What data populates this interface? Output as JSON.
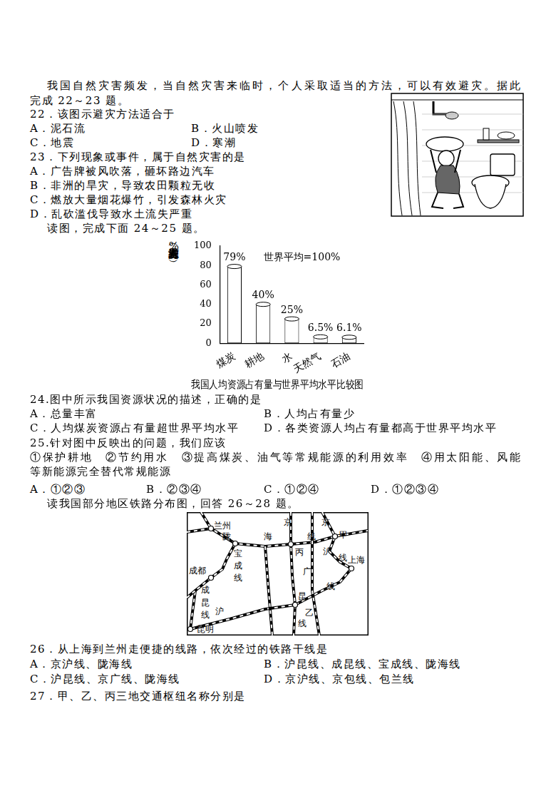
{
  "text_top": [
    [
      "我国自然灾害频发，当自然灾害来临时，个人采取适当的方法，可以有效避灾。据此"
    ],
    [
      "完成 22～23 题。"
    ],
    [
      "22．该图示避灾方法适合于"
    ],
    [
      "A．泥石流",
      "B．火山喷发"
    ],
    [
      "C．地震",
      "D．寒潮"
    ],
    [
      "23．下列现象或事件，属于自然灾害的是"
    ],
    [
      "A．广告牌被风吹落，砸坏路边汽车"
    ],
    [
      "B．非洲的旱灾，导致农田颗粒无收"
    ],
    [
      "C．燃放大量烟花爆竹，引发森林火灾"
    ],
    [
      "D．乱砍滥伐导致水土流失严重"
    ],
    [
      "读图，完成下面 24～25 题。"
    ]
  ],
  "chart_data": {
    "type": "bar",
    "title": "我国人均资源占有量与世界平均水平比较图",
    "y_label": "人均资源占有量（%）",
    "categories": [
      "煤炭",
      "耕地",
      "水",
      "天然气",
      "石油"
    ],
    "values": [
      79,
      40,
      25,
      6.5,
      6.1
    ],
    "value_labels": [
      "79%",
      "40%",
      "25%",
      "6.5%",
      "6.1%"
    ],
    "data_labels": true,
    "color": "#ffffff",
    "ylim": [
      0,
      100
    ],
    "yticks": [
      0,
      20,
      40,
      60,
      80,
      100
    ],
    "grid": false,
    "annotations": [
      "世界平均=100%"
    ]
  },
  "text_middle": [
    [
      "24.图中所示我国资源状况的描述，正确的是"
    ],
    [
      "A．总量丰富",
      "B．人均占有量少"
    ],
    [
      "C．人均煤炭资源占有量超世界平均水平",
      "D．各类资源人均占有量都高于世界平均水平"
    ],
    [
      "25.针对图中反映出的问题，我们应该"
    ],
    [
      "①保护耕地　②节约用水　③提高煤炭、油气等常规能源的利用效率　④用太阳能、风能"
    ],
    [
      "等新能源完全替代常规能源"
    ],
    [
      "A．①②③",
      "B．②③④",
      "C．①②④",
      "D．①②③④"
    ],
    [
      "读我国部分地区铁路分布图，回答 26～28 题。"
    ]
  ],
  "map": {
    "labels": [
      "兰州",
      "陇",
      "海",
      "京",
      "线",
      "京",
      "甲",
      "沪",
      "线",
      "上海",
      "宝",
      "成",
      "线",
      "成都",
      "成",
      "昆",
      "线",
      "沪",
      "昆明",
      "丙",
      "广",
      "线",
      "昆",
      "乙",
      "线"
    ]
  },
  "text_bottom": [
    [
      "26．从上海到兰州走便捷的线路，依次经过的铁路干线是"
    ],
    [
      "A．京沪线、陇海线",
      "B．沪昆线、成昆线、宝成线、陇海线"
    ],
    [
      "C．沪昆线、京广线、陇海线",
      "D．京沪线、京包线、包兰线"
    ],
    [
      "27．甲、乙、丙三地交通枢纽名称分别是"
    ]
  ]
}
